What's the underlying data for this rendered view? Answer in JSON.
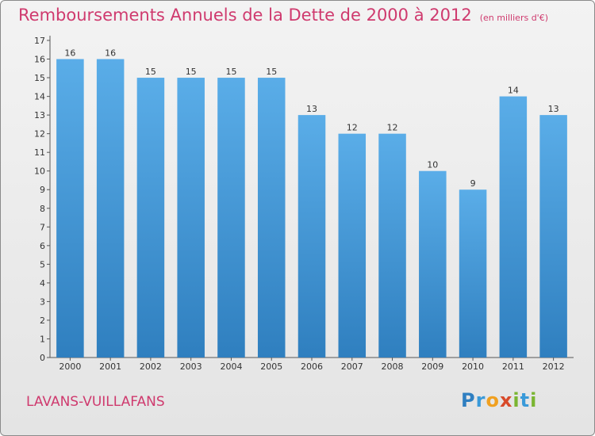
{
  "title": "Remboursements Annuels de la Dette de 2000 à 2012",
  "subtitle": "(en milliers d'€)",
  "commune": "LAVANS-VUILLAFANS",
  "logo": {
    "text": "Proxiti",
    "letters": [
      {
        "ch": "P",
        "color": "#2f7fc1"
      },
      {
        "ch": "r",
        "color": "#3a9ad9"
      },
      {
        "ch": "o",
        "color": "#f0a020"
      },
      {
        "ch": "x",
        "color": "#d84a2a"
      },
      {
        "ch": "i",
        "color": "#7ab531"
      },
      {
        "ch": "t",
        "color": "#3a9ad9"
      },
      {
        "ch": "i",
        "color": "#7ab531"
      }
    ]
  },
  "colors": {
    "title": "#cf3a6e",
    "bar_top": "#5aade8",
    "bar_bottom": "#2f7fbf",
    "axis": "#555555",
    "text": "#333333"
  },
  "chart_data": {
    "type": "bar",
    "categories": [
      "2000",
      "2001",
      "2002",
      "2003",
      "2004",
      "2005",
      "2006",
      "2007",
      "2008",
      "2009",
      "2010",
      "2011",
      "2012"
    ],
    "values": [
      16,
      16,
      15,
      15,
      15,
      15,
      13,
      12,
      12,
      10,
      9,
      14,
      13
    ],
    "ylim": [
      0,
      17
    ],
    "yticks": [
      0,
      1,
      2,
      3,
      4,
      5,
      6,
      7,
      8,
      9,
      10,
      11,
      12,
      13,
      14,
      15,
      16,
      17
    ],
    "data_labels": true,
    "grid": false
  }
}
